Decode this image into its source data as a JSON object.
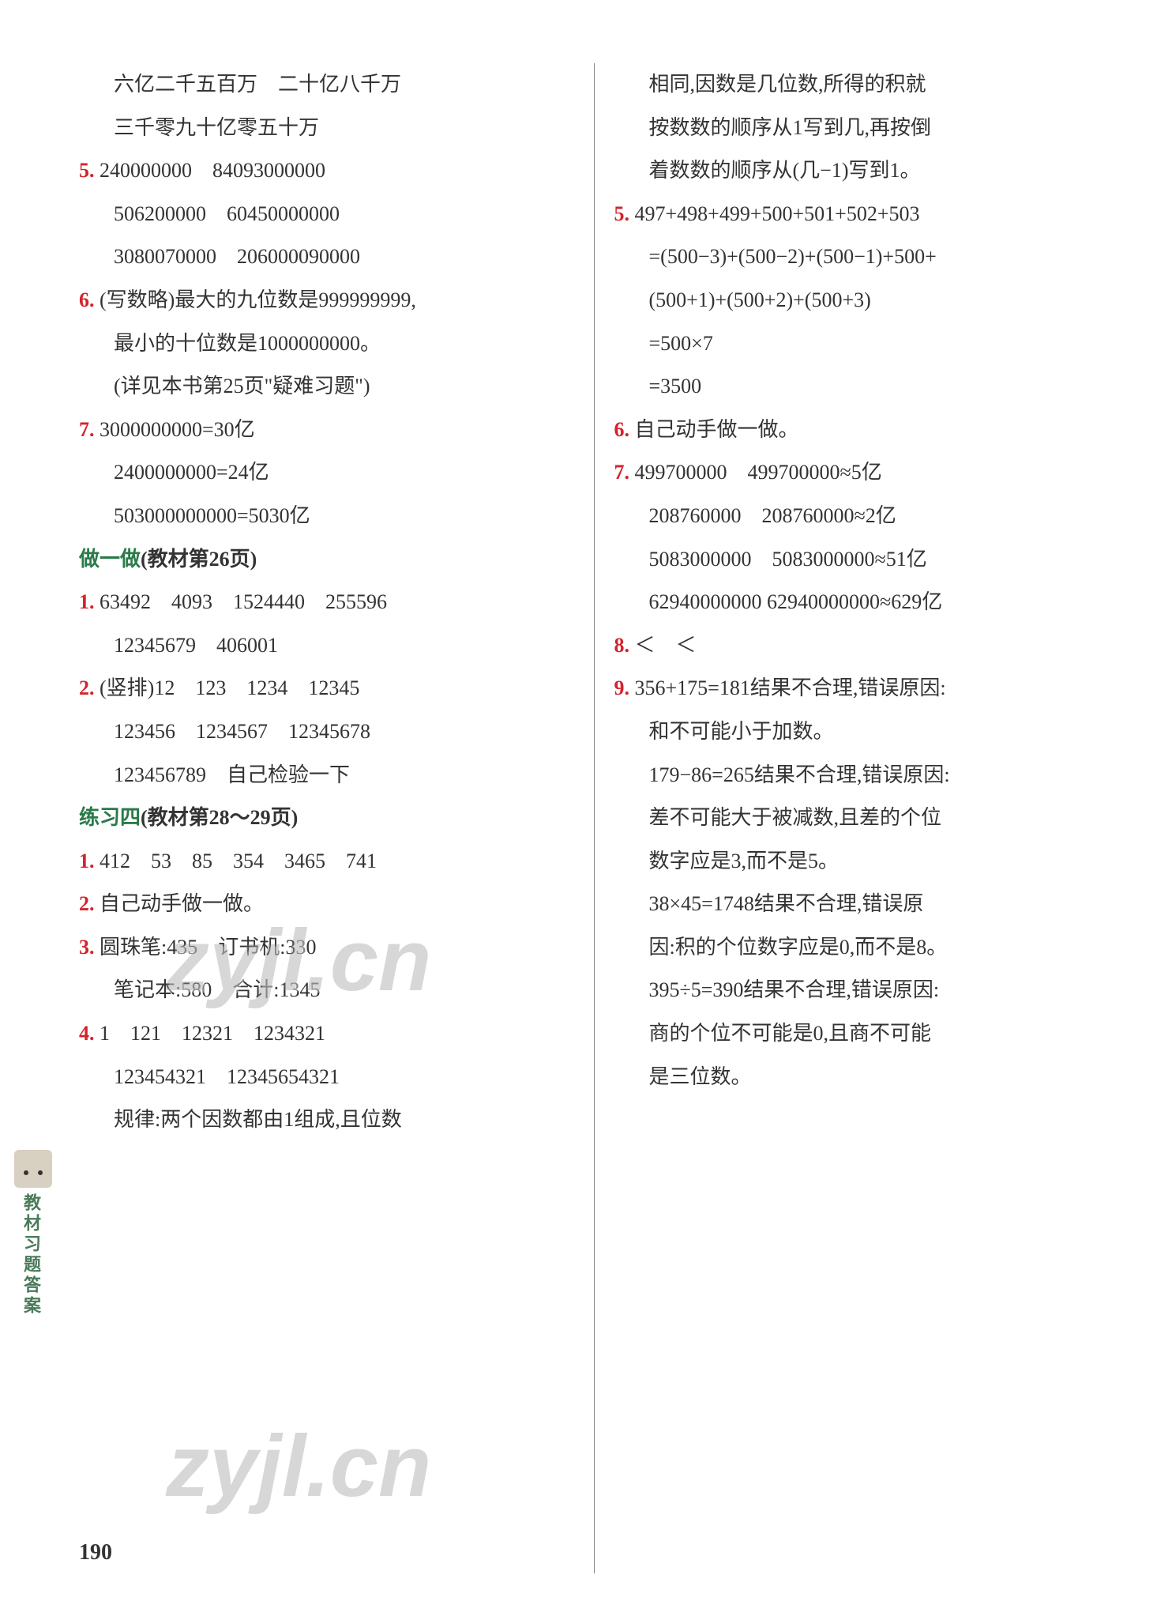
{
  "leftColumn": {
    "l1": "六亿二千五百万　二十亿八千万",
    "l2": "三千零九十亿零五十万",
    "n5": "5.",
    "l3a": "240000000　84093000000",
    "l3b": "506200000　60450000000",
    "l3c": "3080070000　206000090000",
    "n6": "6.",
    "l4a": "(写数略)最大的九位数是999999999,",
    "l4b": "最小的十位数是1000000000。",
    "l4c": "(详见本书第25页\"疑难习题\")",
    "n7": "7.",
    "l5a": "3000000000=30亿",
    "l5b": "2400000000=24亿",
    "l5c": "503000000000=5030亿",
    "secA": "做一做",
    "secA2": "(教材第26页)",
    "sA_n1": "1.",
    "sA_l1a": "63492　4093　1524440　255596",
    "sA_l1b": "12345679　406001",
    "sA_n2": "2.",
    "sA_l2a": "(竖排)12　123　1234　12345",
    "sA_l2b": "123456　1234567　12345678",
    "sA_l2c": "123456789　自己检验一下",
    "secB": "练习四",
    "secB2": "(教材第28～29页)",
    "sB_n1": "1.",
    "sB_l1": "412　53　85　354　3465　741",
    "sB_n2": "2.",
    "sB_l2": "自己动手做一做。",
    "sB_n3": "3.",
    "sB_l3a": "圆珠笔:435　订书机:330",
    "sB_l3b": "笔记本:580　合计:1345",
    "sB_n4": "4.",
    "sB_l4a": "1　121　12321　1234321",
    "sB_l4b": "123454321　12345654321",
    "sB_l4c": "规律:两个因数都由1组成,且位数"
  },
  "rightColumn": {
    "r1": "相同,因数是几位数,所得的积就",
    "r2": "按数数的顺序从1写到几,再按倒",
    "r3": "着数数的顺序从(几−1)写到1。",
    "n5": "5.",
    "r5a": " 497+498+499+500+501+502+503",
    "r5b": "=(500−3)+(500−2)+(500−1)+500+",
    "r5c": " (500+1)+(500+2)+(500+3)",
    "r5d": "=500×7",
    "r5e": "=3500",
    "n6": "6.",
    "r6": "自己动手做一做。",
    "n7": "7.",
    "r7a": "499700000　499700000≈5亿",
    "r7b": "208760000　208760000≈2亿",
    "r7c": "5083000000　5083000000≈51亿",
    "r7d": "62940000000 62940000000≈629亿",
    "n8": "8.",
    "r8": "＜　＜",
    "n9": "9.",
    "r9a": "356+175=181结果不合理,错误原因:",
    "r9b": "和不可能小于加数。",
    "r9c": "179−86=265结果不合理,错误原因:",
    "r9d": "差不可能大于被减数,且差的个位",
    "r9e": "数字应是3,而不是5。",
    "r9f": "38×45=1748结果不合理,错误原",
    "r9g": "因:积的个位数字应是0,而不是8。",
    "r9h": "395÷5=390结果不合理,错误原因:",
    "r9i": "商的个位不可能是0,且商不可能",
    "r9j": "是三位数。"
  },
  "sideLabel": "教材习题答案",
  "pageNum": "190",
  "watermark": "zyjl.cn"
}
